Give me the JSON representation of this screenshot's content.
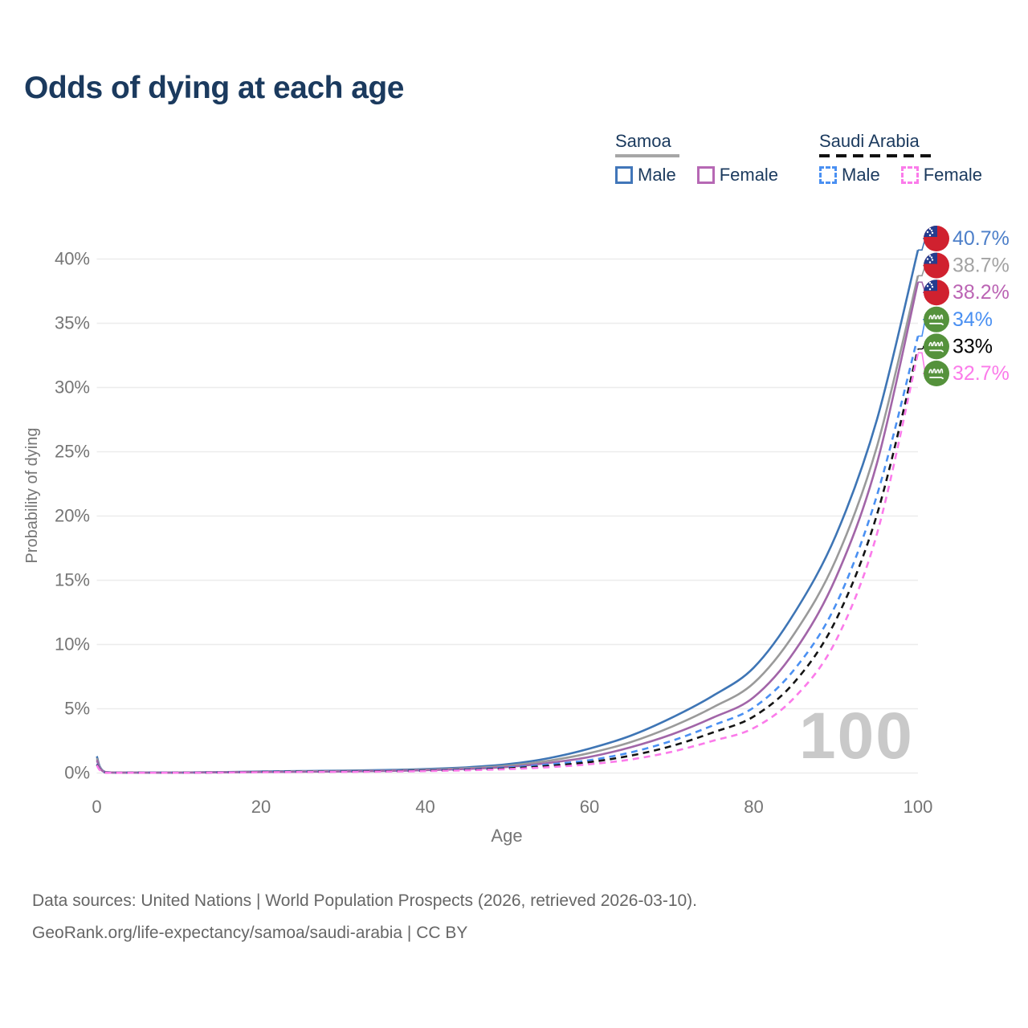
{
  "title": "Odds of dying at each age",
  "watermark_age": "100",
  "legend": {
    "groups": [
      {
        "name": "Samoa",
        "line_style": "solid",
        "underline_color": "#a6a6a6",
        "items": [
          {
            "label": "Male",
            "color": "#4176b9",
            "dashed": false
          },
          {
            "label": "Female",
            "color": "#b668b4",
            "dashed": false
          }
        ]
      },
      {
        "name": "Saudi Arabia",
        "line_style": "dashed",
        "underline_color": "#111111",
        "items": [
          {
            "label": "Male",
            "color": "#4a90f2",
            "dashed": true
          },
          {
            "label": "Female",
            "color": "#fb7bea",
            "dashed": true
          }
        ]
      }
    ]
  },
  "footer": {
    "line1": "Data sources: United Nations | World Population Prospects (2026, retrieved 2026-03-10).",
    "line2": "GeoRank.org/life-expectancy/samoa/saudi-arabia | CC BY"
  },
  "icon_colors": {
    "samoa_flag_red": "#d0212f",
    "samoa_flag_blue": "#253d8f",
    "samoa_flag_star": "#ffffff",
    "saudi_flag_green": "#55923c",
    "saudi_flag_white": "#ffffff",
    "gridline": "#ececec",
    "axis_text": "#757575"
  },
  "chart_data": {
    "type": "line",
    "title": "Odds of dying at each age",
    "xlabel": "Age",
    "ylabel": "Probability of dying",
    "xlim": [
      0,
      100
    ],
    "ylim": [
      0,
      42
    ],
    "x_ticks": [
      0,
      20,
      40,
      60,
      80,
      100
    ],
    "y_ticks": [
      0,
      5,
      10,
      15,
      20,
      25,
      30,
      35,
      40
    ],
    "grid": "horizontal",
    "legend_position": "top-right",
    "x": [
      0,
      1,
      5,
      10,
      15,
      20,
      25,
      30,
      35,
      40,
      45,
      50,
      55,
      60,
      65,
      70,
      75,
      80,
      85,
      90,
      95,
      100
    ],
    "series": [
      {
        "name": "Samoa Male",
        "country": "Samoa",
        "sex": "Male",
        "color": "#3e75b5",
        "dashed": false,
        "flag": "samoa",
        "end_label": "40.7%",
        "end_label_color": "#4d7fc9",
        "values": [
          1.3,
          0.09,
          0.04,
          0.04,
          0.07,
          0.12,
          0.15,
          0.18,
          0.23,
          0.31,
          0.44,
          0.68,
          1.15,
          1.9,
          2.9,
          4.3,
          6.0,
          8.2,
          12.5,
          18.5,
          27.5,
          40.7
        ]
      },
      {
        "name": "Samoa Both sexes",
        "country": "Samoa",
        "sex": "Both",
        "color": "#9a9a9a",
        "dashed": false,
        "flag": "samoa",
        "end_label": "38.7%",
        "end_label_color": "#a3a3a3",
        "values": [
          1.15,
          0.08,
          0.035,
          0.035,
          0.06,
          0.1,
          0.13,
          0.15,
          0.19,
          0.26,
          0.37,
          0.57,
          0.95,
          1.55,
          2.4,
          3.6,
          5.1,
          7.0,
          10.9,
          16.6,
          25.4,
          38.7
        ]
      },
      {
        "name": "Samoa Female",
        "country": "Samoa",
        "sex": "Female",
        "color": "#a265a8",
        "dashed": false,
        "flag": "samoa",
        "end_label": "38.2%",
        "end_label_color": "#bb64b4",
        "values": [
          1.0,
          0.07,
          0.03,
          0.03,
          0.05,
          0.08,
          0.1,
          0.12,
          0.16,
          0.22,
          0.31,
          0.47,
          0.78,
          1.25,
          2.0,
          3.0,
          4.3,
          5.9,
          9.5,
          15.2,
          24.1,
          38.2
        ]
      },
      {
        "name": "Saudi Arabia Male",
        "country": "Saudi Arabia",
        "sex": "Male",
        "color": "#4a90f2",
        "dashed": true,
        "flag": "saudi-arabia",
        "end_label": "34%",
        "end_label_color": "#4a90f2",
        "values": [
          0.7,
          0.05,
          0.03,
          0.03,
          0.05,
          0.09,
          0.11,
          0.13,
          0.16,
          0.21,
          0.29,
          0.43,
          0.66,
          1.0,
          1.6,
          2.5,
          3.7,
          5.1,
          8.1,
          13.1,
          21.6,
          34.0
        ]
      },
      {
        "name": "Saudi Arabia Both sexes",
        "country": "Saudi Arabia",
        "sex": "Both",
        "color": "#141414",
        "dashed": true,
        "flag": "saudi-arabia",
        "end_label": "33%",
        "end_label_color": "#000000",
        "values": [
          0.65,
          0.045,
          0.025,
          0.025,
          0.045,
          0.08,
          0.1,
          0.11,
          0.14,
          0.18,
          0.25,
          0.36,
          0.55,
          0.85,
          1.35,
          2.1,
          3.15,
          4.4,
          7.1,
          11.9,
          20.1,
          33.0
        ]
      },
      {
        "name": "Saudi Arabia Female",
        "country": "Saudi Arabia",
        "sex": "Female",
        "color": "#fb7bea",
        "dashed": true,
        "flag": "saudi-arabia",
        "end_label": "32.7%",
        "end_label_color": "#fb7bea",
        "values": [
          0.6,
          0.04,
          0.02,
          0.02,
          0.04,
          0.06,
          0.08,
          0.09,
          0.11,
          0.15,
          0.21,
          0.3,
          0.45,
          0.68,
          1.05,
          1.65,
          2.5,
          3.5,
          5.9,
          10.3,
          18.6,
          32.7
        ]
      }
    ]
  }
}
